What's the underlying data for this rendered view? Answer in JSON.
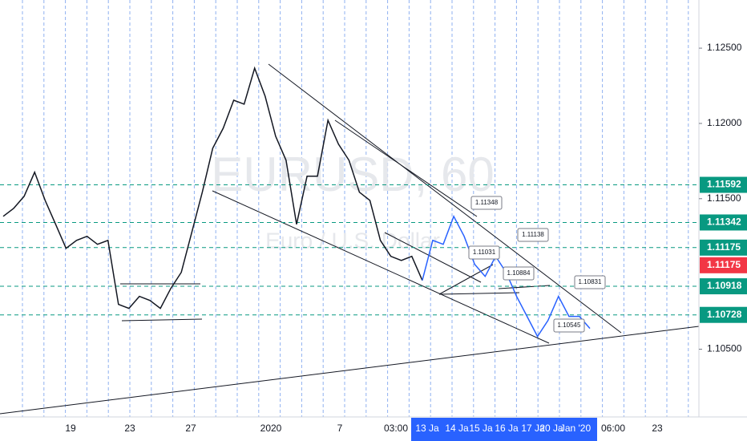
{
  "chart_data": {
    "type": "line",
    "watermark": "EURUSD, 60",
    "watermark_sub": "Euro / U.S. Dollar",
    "ylim": [
      1.1005,
      1.1282
    ],
    "yticks": [
      {
        "value": 1.125,
        "label": "1.12500"
      },
      {
        "value": 1.12,
        "label": "1.12000"
      },
      {
        "value": 1.115,
        "label": "1.11500"
      },
      {
        "value": 1.105,
        "label": "1.10500"
      }
    ],
    "series": [
      {
        "color": "#131722",
        "values": [
          1.11383,
          1.11436,
          1.11516,
          1.11676,
          1.11489,
          1.1133,
          1.1117,
          1.11223,
          1.1125,
          1.11197,
          1.11223,
          1.10798,
          1.10771,
          1.10851,
          1.10824,
          1.10771,
          1.10904,
          1.11011,
          1.11277,
          1.11543,
          1.11835,
          1.11968,
          1.12154,
          1.12128,
          1.12367,
          1.12181,
          1.11915,
          1.11755,
          1.1133,
          1.11649,
          1.11649,
          1.12021,
          1.11862,
          1.11755,
          1.11543,
          1.11489,
          1.11223,
          1.11117,
          1.1109,
          1.11117,
          1.10957,
          null,
          null,
          null,
          null,
          null,
          null,
          null,
          null,
          null,
          null,
          null,
          null,
          null,
          null,
          null,
          null
        ]
      },
      {
        "color": "#2962ff",
        "values": [
          null,
          null,
          null,
          null,
          null,
          null,
          null,
          null,
          null,
          null,
          null,
          null,
          null,
          null,
          null,
          null,
          null,
          null,
          null,
          null,
          null,
          null,
          null,
          null,
          null,
          null,
          null,
          null,
          null,
          null,
          null,
          null,
          null,
          null,
          null,
          null,
          null,
          null,
          null,
          null,
          1.10957,
          1.11223,
          1.11197,
          1.11383,
          1.1125,
          1.11064,
          1.10984,
          1.11117,
          1.11011,
          1.10851,
          1.10718,
          1.10585,
          1.10691,
          1.10851,
          1.10718,
          1.10718,
          1.10638
        ]
      }
    ],
    "levels": [
      1.11592,
      1.11342,
      1.11175,
      1.10918,
      1.10728
    ],
    "level_color": "#089981",
    "last_price": 1.11175,
    "last_price_color": "#f23645",
    "callouts": [
      1.11348,
      1.11138,
      1.11031,
      1.10884,
      1.10831,
      1.10545
    ],
    "x_labels": [
      "19",
      "23",
      "27",
      "2020",
      "7",
      "03:00",
      "13 Ja",
      "14 Ja",
      "15 Ja",
      "16 Ja",
      "17 Ja",
      "20 Ja",
      "Jan '20",
      "06:00",
      "23"
    ]
  }
}
